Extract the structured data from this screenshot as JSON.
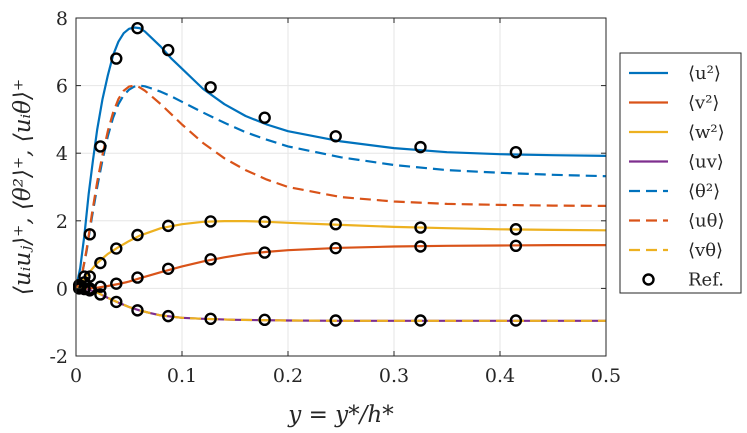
{
  "chart_data": {
    "type": "line",
    "xlabel": "y = y*/h*",
    "ylabel": "⟨uᵢuⱼ⟩⁺,   ⟨θ²⟩⁺,   ⟨uᵢθ⟩⁺",
    "xlim": [
      0,
      0.5
    ],
    "ylim": [
      -2,
      8
    ],
    "xticks": [
      0,
      0.1,
      0.2,
      0.3,
      0.4,
      0.5
    ],
    "xtick_labels": [
      "0",
      "0.1",
      "0.2",
      "0.3",
      "0.4",
      "0.5"
    ],
    "yticks": [
      -2,
      0,
      2,
      4,
      6,
      8
    ],
    "ytick_labels": [
      "-2",
      "0",
      "2",
      "4",
      "6",
      "8"
    ],
    "grid": true,
    "legend_position": "right-outside",
    "series": [
      {
        "name": "⟨u²⟩",
        "color": "#0072BD",
        "style": "solid",
        "x": [
          0,
          0.004,
          0.008,
          0.012,
          0.016,
          0.02,
          0.025,
          0.03,
          0.035,
          0.04,
          0.045,
          0.05,
          0.055,
          0.06,
          0.065,
          0.07,
          0.08,
          0.09,
          0.1,
          0.12,
          0.14,
          0.16,
          0.18,
          0.2,
          0.25,
          0.3,
          0.35,
          0.4,
          0.45,
          0.5
        ],
        "y": [
          0,
          0.6,
          1.6,
          2.8,
          3.8,
          4.7,
          5.6,
          6.3,
          6.9,
          7.3,
          7.55,
          7.68,
          7.72,
          7.7,
          7.6,
          7.45,
          7.15,
          6.8,
          6.5,
          5.9,
          5.45,
          5.1,
          4.85,
          4.65,
          4.35,
          4.15,
          4.03,
          3.97,
          3.94,
          3.92
        ]
      },
      {
        "name": "⟨v²⟩",
        "color": "#D95319",
        "style": "solid",
        "x": [
          0,
          0.01,
          0.02,
          0.03,
          0.04,
          0.05,
          0.06,
          0.08,
          0.1,
          0.12,
          0.14,
          0.16,
          0.18,
          0.2,
          0.25,
          0.3,
          0.35,
          0.4,
          0.45,
          0.5
        ],
        "y": [
          0,
          0.0,
          0.02,
          0.07,
          0.13,
          0.2,
          0.3,
          0.48,
          0.65,
          0.8,
          0.92,
          1.02,
          1.08,
          1.13,
          1.2,
          1.24,
          1.26,
          1.27,
          1.28,
          1.28
        ]
      },
      {
        "name": "⟨w²⟩",
        "color": "#EDB120",
        "style": "solid",
        "x": [
          0,
          0.005,
          0.01,
          0.02,
          0.03,
          0.04,
          0.05,
          0.06,
          0.08,
          0.1,
          0.12,
          0.14,
          0.16,
          0.18,
          0.2,
          0.25,
          0.3,
          0.35,
          0.4,
          0.45,
          0.5
        ],
        "y": [
          0,
          0.15,
          0.38,
          0.75,
          1.02,
          1.22,
          1.4,
          1.56,
          1.78,
          1.9,
          1.97,
          1.99,
          1.99,
          1.97,
          1.94,
          1.88,
          1.82,
          1.78,
          1.75,
          1.73,
          1.72
        ]
      },
      {
        "name": "⟨uv⟩",
        "color": "#7E2F8E",
        "style": "solid",
        "x": [
          0,
          0.01,
          0.02,
          0.03,
          0.04,
          0.05,
          0.06,
          0.07,
          0.08,
          0.1,
          0.12,
          0.15,
          0.2,
          0.25,
          0.3,
          0.4,
          0.5
        ],
        "y": [
          0,
          -0.02,
          -0.12,
          -0.28,
          -0.42,
          -0.55,
          -0.65,
          -0.73,
          -0.8,
          -0.87,
          -0.9,
          -0.93,
          -0.95,
          -0.96,
          -0.96,
          -0.96,
          -0.96
        ]
      },
      {
        "name": "⟨θ²⟩",
        "color": "#0072BD",
        "style": "dashed",
        "x": [
          0,
          0.005,
          0.01,
          0.015,
          0.02,
          0.025,
          0.03,
          0.035,
          0.04,
          0.045,
          0.05,
          0.055,
          0.06,
          0.065,
          0.07,
          0.08,
          0.09,
          0.1,
          0.12,
          0.14,
          0.16,
          0.18,
          0.2,
          0.25,
          0.3,
          0.35,
          0.4,
          0.45,
          0.5
        ],
        "y": [
          0,
          0.3,
          1.1,
          2.1,
          3.0,
          3.8,
          4.5,
          5.05,
          5.45,
          5.72,
          5.88,
          5.97,
          6.0,
          5.98,
          5.93,
          5.82,
          5.68,
          5.52,
          5.2,
          4.9,
          4.62,
          4.4,
          4.2,
          3.88,
          3.65,
          3.5,
          3.42,
          3.36,
          3.32
        ]
      },
      {
        "name": "⟨uθ⟩",
        "color": "#D95319",
        "style": "dashed",
        "x": [
          0,
          0.005,
          0.01,
          0.015,
          0.02,
          0.025,
          0.03,
          0.035,
          0.04,
          0.045,
          0.05,
          0.055,
          0.06,
          0.065,
          0.07,
          0.08,
          0.09,
          0.1,
          0.12,
          0.14,
          0.16,
          0.18,
          0.2,
          0.25,
          0.3,
          0.35,
          0.4,
          0.45,
          0.5
        ],
        "y": [
          0,
          0.3,
          1.15,
          2.2,
          3.15,
          3.95,
          4.65,
          5.2,
          5.6,
          5.85,
          5.97,
          6.0,
          5.95,
          5.85,
          5.72,
          5.45,
          5.15,
          4.85,
          4.3,
          3.85,
          3.5,
          3.22,
          3.0,
          2.7,
          2.57,
          2.5,
          2.47,
          2.45,
          2.44
        ]
      },
      {
        "name": "⟨vθ⟩",
        "color": "#EDB120",
        "style": "dashed",
        "x": [
          0,
          0.01,
          0.02,
          0.03,
          0.04,
          0.05,
          0.06,
          0.07,
          0.08,
          0.1,
          0.12,
          0.15,
          0.2,
          0.25,
          0.3,
          0.4,
          0.5
        ],
        "y": [
          0,
          -0.02,
          -0.12,
          -0.28,
          -0.42,
          -0.55,
          -0.65,
          -0.73,
          -0.8,
          -0.87,
          -0.9,
          -0.93,
          -0.95,
          -0.96,
          -0.96,
          -0.96,
          -0.96
        ]
      }
    ],
    "reference": {
      "name": "Ref.",
      "marker": "circle",
      "color": "#000000",
      "sets": [
        {
          "x": [
            0.003,
            0.008,
            0.013,
            0.023,
            0.038,
            0.058,
            0.087,
            0.127,
            0.178,
            0.245,
            0.325,
            0.415
          ],
          "y": [
            0.1,
            0.35,
            1.6,
            4.2,
            6.8,
            7.7,
            7.05,
            5.95,
            5.05,
            4.5,
            4.18,
            4.03
          ]
        },
        {
          "x": [
            0.003,
            0.008,
            0.013,
            0.023,
            0.038,
            0.058,
            0.087,
            0.127,
            0.178,
            0.245,
            0.325,
            0.415
          ],
          "y": [
            0.0,
            0.0,
            0.0,
            0.05,
            0.14,
            0.32,
            0.58,
            0.86,
            1.06,
            1.19,
            1.24,
            1.26
          ]
        },
        {
          "x": [
            0.003,
            0.008,
            0.013,
            0.023,
            0.038,
            0.058,
            0.087,
            0.127,
            0.178,
            0.245,
            0.325,
            0.415
          ],
          "y": [
            0.05,
            0.18,
            0.35,
            0.75,
            1.18,
            1.58,
            1.85,
            1.98,
            1.97,
            1.9,
            1.8,
            1.75
          ]
        },
        {
          "x": [
            0.003,
            0.008,
            0.013,
            0.023,
            0.038,
            0.058,
            0.087,
            0.127,
            0.178,
            0.245,
            0.325,
            0.415
          ],
          "y": [
            0.0,
            -0.02,
            -0.06,
            -0.18,
            -0.4,
            -0.65,
            -0.82,
            -0.9,
            -0.93,
            -0.95,
            -0.95,
            -0.95
          ]
        }
      ]
    }
  }
}
